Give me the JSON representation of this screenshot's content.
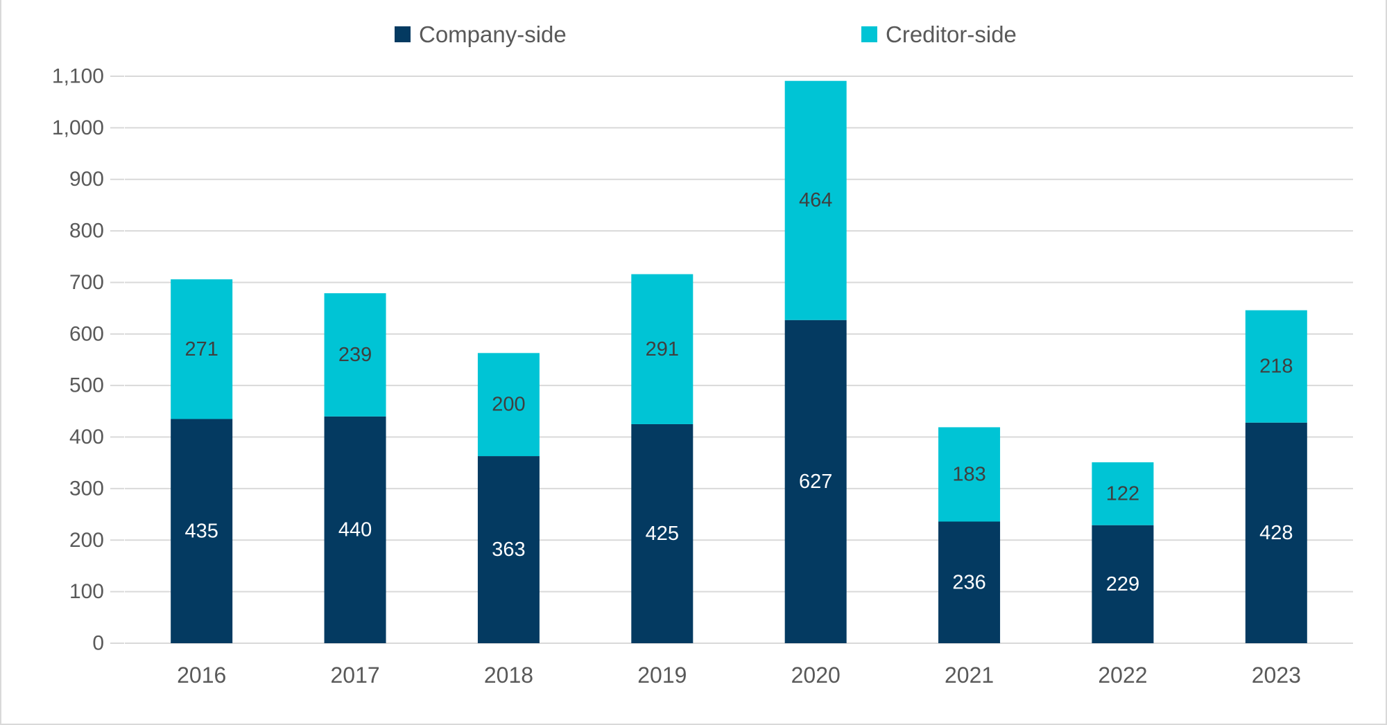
{
  "chart_data": {
    "type": "bar",
    "stacked": true,
    "title": "",
    "categories": [
      "2016",
      "2017",
      "2018",
      "2019",
      "2020",
      "2021",
      "2022",
      "2023"
    ],
    "series": [
      {
        "name": "Company-side",
        "color": "#043a61",
        "label_color": "#ffffff",
        "values": [
          435,
          440,
          363,
          425,
          627,
          236,
          229,
          428
        ]
      },
      {
        "name": "Creditor-side",
        "color": "#00c4d5",
        "label_color": "#3f3f3f",
        "values": [
          271,
          239,
          200,
          291,
          464,
          183,
          122,
          218
        ]
      }
    ],
    "totals": [
      706,
      679,
      563,
      716,
      1091,
      419,
      351,
      646
    ],
    "xlabel": "",
    "ylabel": "",
    "ylim": [
      0,
      1100
    ],
    "ytick_step": 100,
    "ytick_labels": [
      "0",
      "100",
      "200",
      "300",
      "400",
      "500",
      "600",
      "700",
      "800",
      "900",
      "1,000",
      "1,100"
    ],
    "grid": "horizontal",
    "legend_position": "top",
    "data_labels": true,
    "axis_text_color": "#595959",
    "gridline_color": "#d9d9d9"
  }
}
